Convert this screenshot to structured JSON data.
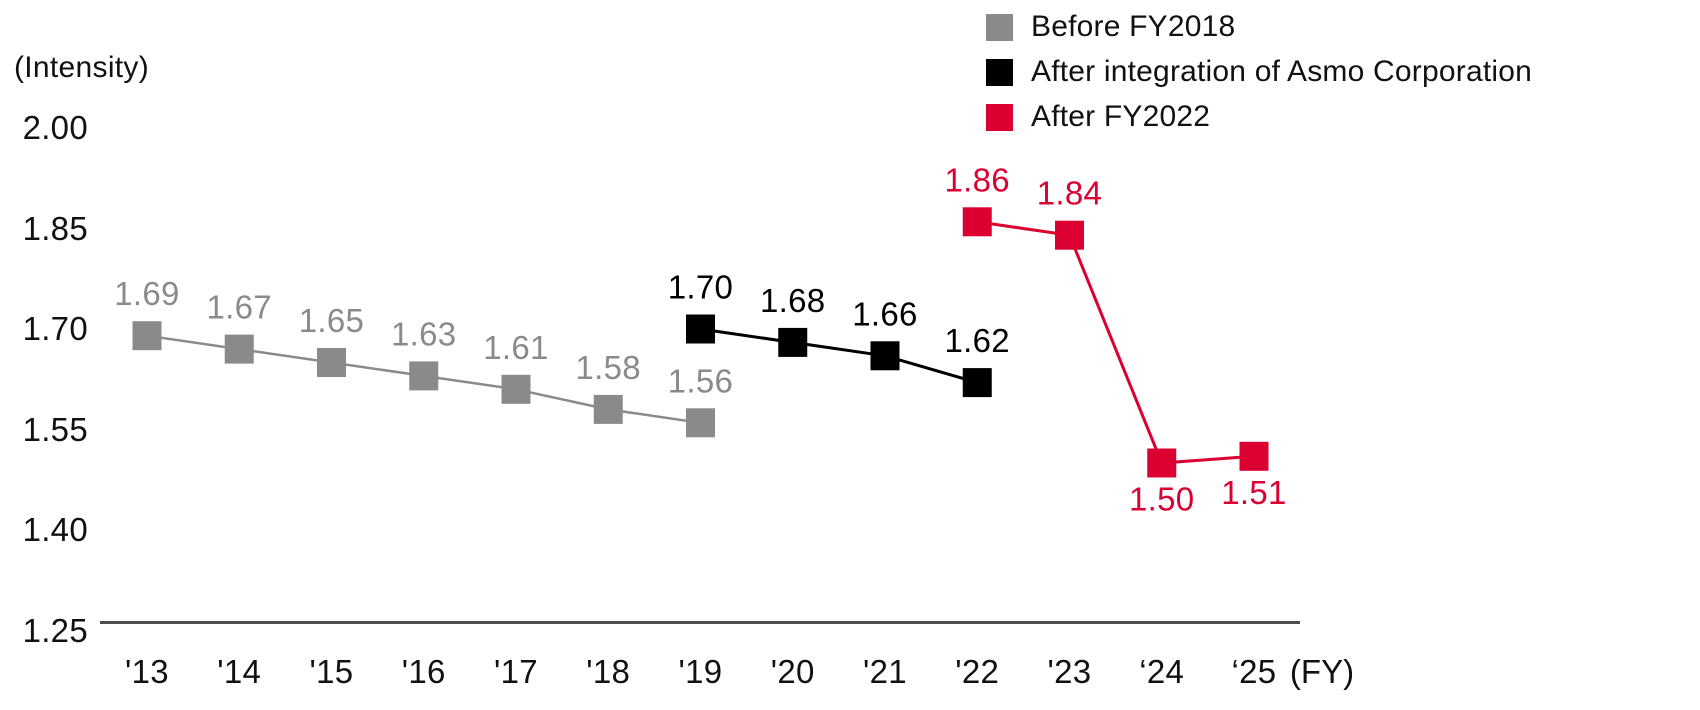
{
  "chart": {
    "y_axis_title": "(Intensity)",
    "x_axis_unit": "(FY)",
    "y_ticks": [
      "2.00",
      "1.85",
      "1.70",
      "1.55",
      "1.40",
      "1.25"
    ],
    "x_labels": [
      "'13",
      "'14",
      "'15",
      "'16",
      "'17",
      "'18",
      "'19",
      "'20",
      "'21",
      "'22",
      "'23",
      "‘24",
      "‘25"
    ]
  },
  "legend": {
    "items": [
      {
        "label": "Before FY2018",
        "color": "#8a8a8a"
      },
      {
        "label": "After integration of Asmo Corporation",
        "color": "#000000"
      },
      {
        "label": "After FY2022",
        "color": "#dc0032"
      }
    ]
  },
  "chart_data": {
    "type": "line",
    "title": "",
    "ylabel": "(Intensity)",
    "xlabel": "(FY)",
    "categories": [
      "'13",
      "'14",
      "'15",
      "'16",
      "'17",
      "'18",
      "'19",
      "'20",
      "'21",
      "'22",
      "'23",
      "'24",
      "'25"
    ],
    "ylim": [
      1.25,
      2.0
    ],
    "y_tick_step": 0.15,
    "grid": false,
    "legend_position": "top-right",
    "marker": "square",
    "series": [
      {
        "name": "Before FY2018",
        "color": "#8a8a8a",
        "line_width": 2.5,
        "x_start_index": 0,
        "values": [
          1.69,
          1.67,
          1.65,
          1.63,
          1.61,
          1.58,
          1.56
        ],
        "label_positions": [
          "above",
          "above",
          "above",
          "above",
          "above",
          "above",
          "above"
        ]
      },
      {
        "name": "After integration of Asmo Corporation",
        "color": "#000000",
        "line_width": 3,
        "x_start_index": 6,
        "values": [
          1.7,
          1.68,
          1.66,
          1.62
        ],
        "label_positions": [
          "above",
          "above",
          "above",
          "above"
        ]
      },
      {
        "name": "After FY2022",
        "color": "#dc0032",
        "line_width": 3,
        "x_start_index": 9,
        "values": [
          1.86,
          1.84,
          1.5,
          1.51
        ],
        "label_positions": [
          "above",
          "above",
          "below",
          "below"
        ]
      }
    ]
  }
}
